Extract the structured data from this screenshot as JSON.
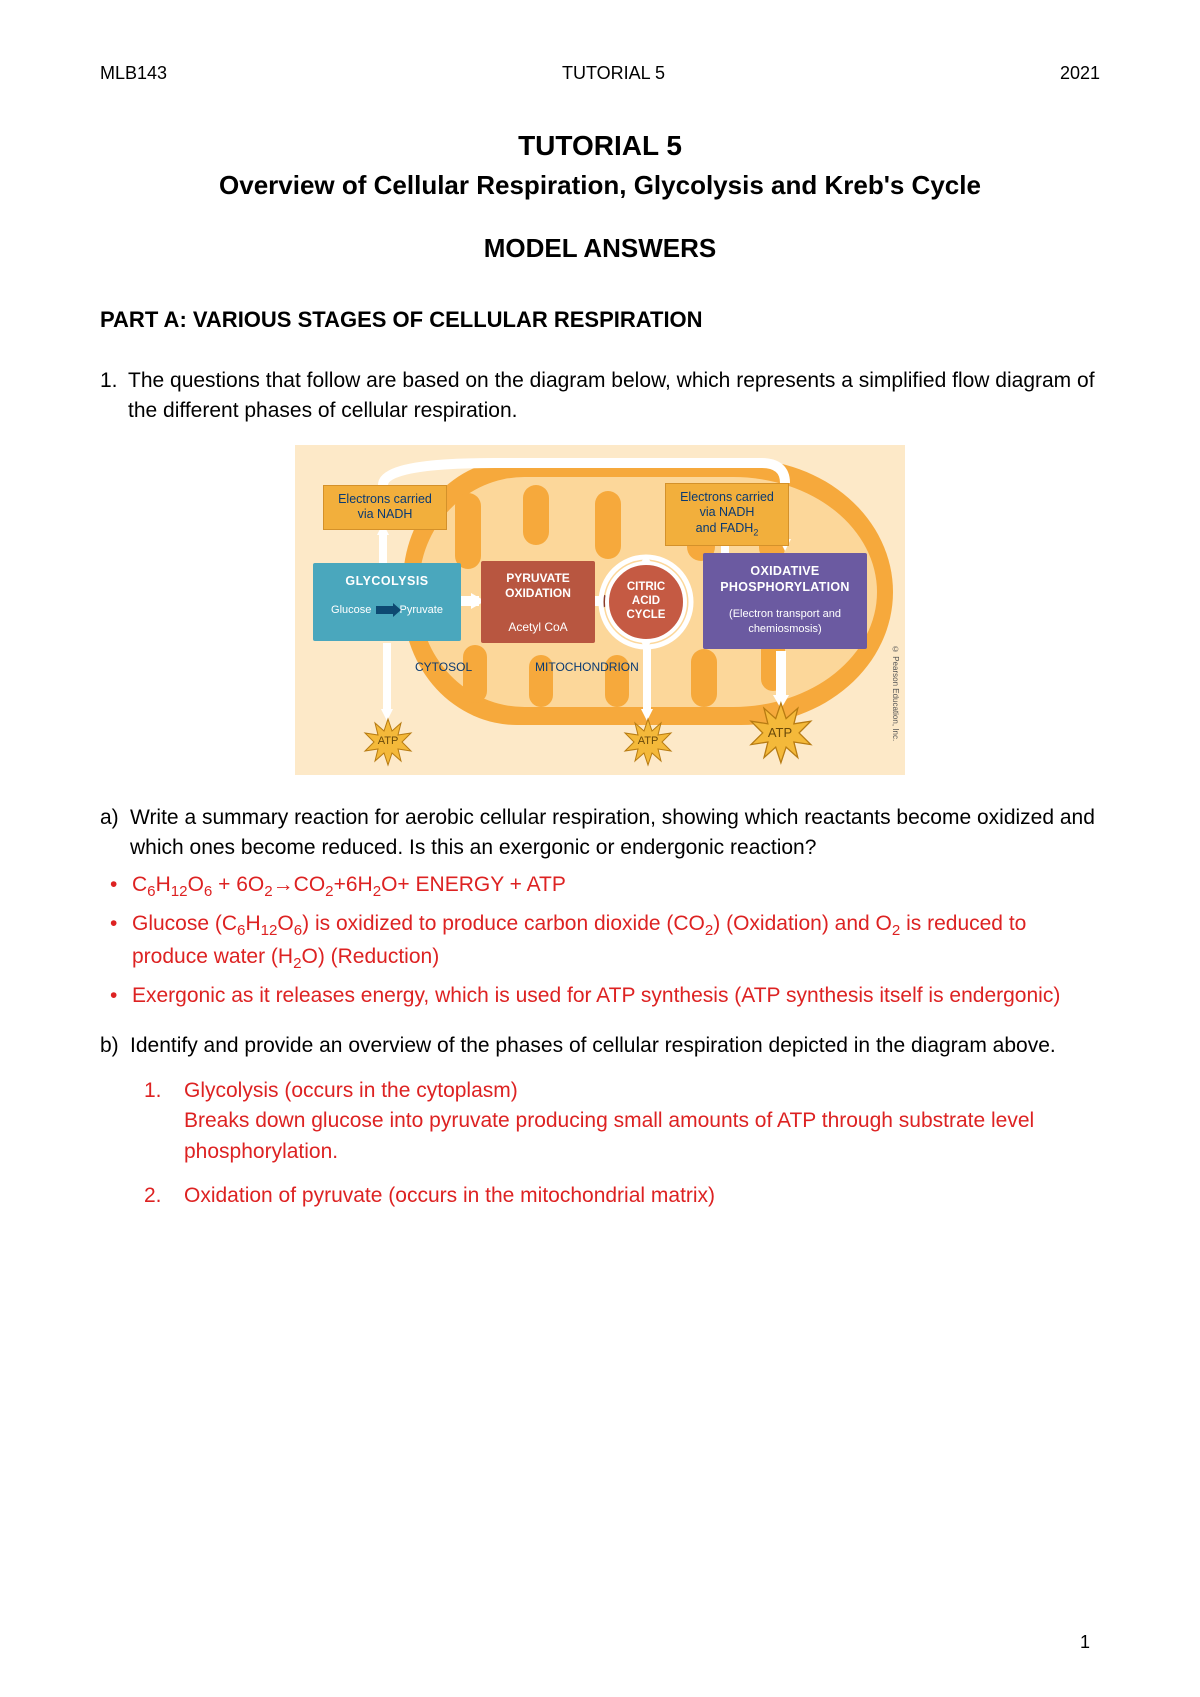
{
  "header": {
    "course": "MLB143",
    "tutorial": "TUTORIAL 5",
    "year": "2021"
  },
  "titles": {
    "main": "TUTORIAL 5",
    "sub": "Overview of Cellular Respiration, Glycolysis and Kreb's Cycle",
    "model": "MODEL ANSWERS",
    "partA": "PART A: VARIOUS STAGES OF CELLULAR RESPIRATION"
  },
  "q1_intro": "The questions that follow are based on the diagram below, which represents a simplified flow diagram of the different phases of cellular respiration.",
  "diagram": {
    "type": "flowchart",
    "background_color": "#fde9c8",
    "mito_outer_color": "#f6a93c",
    "mito_inner_color": "#fcd79a",
    "nadh_left": "Electrons carried via NADH",
    "nadh_right_l1": "Electrons carried",
    "nadh_right_l2": "via NADH",
    "nadh_right_l3": "and FADH",
    "nadh_right_sub": "2",
    "nadh_bg": "#f2af3c",
    "nadh_text": "#093a73",
    "glyco_title": "GLYCOLYSIS",
    "glyco_detail_pre": "Glucose",
    "glyco_detail_post": "Pyruvate",
    "glyco_color": "#4aa7bd",
    "pyox_title": "PYRUVATE OXIDATION",
    "pyox_detail": "Acetyl CoA",
    "pyox_color": "#b85640",
    "cac_l1": "CITRIC",
    "cac_l2": "ACID",
    "cac_l3": "CYCLE",
    "cac_color": "#c55a43",
    "oxphos_title": "OXIDATIVE PHOSPHORYLATION",
    "oxphos_detail": "(Electron transport and chemiosmosis)",
    "oxphos_color": "#6b5aa1",
    "cytosol": "CYTOSOL",
    "mitochondrion": "MITOCHONDRION",
    "atp": "ATP",
    "atp_fill": "#f4b93a",
    "atp_stroke": "#b77b12",
    "copyright": "© Pearson Education, Inc."
  },
  "qa_a": {
    "label": "a)",
    "question": "Write a summary reaction for aerobic cellular respiration, showing which reactants become oxidized and which ones become reduced. Is this an exergonic or endergonic reaction?",
    "answers": [
      {
        "html": "C<sub>6</sub>H<sub>12</sub>O<sub>6</sub> + 6O<sub>2</sub>→CO<sub>2</sub>+6H<sub>2</sub>O+ ENERGY + ATP"
      },
      {
        "html": "Glucose (C<sub>6</sub>H<sub>12</sub>O<sub>6</sub>) is oxidized to produce carbon dioxide (CO<sub>2</sub>) (Oxidation) and O<sub>2</sub> is reduced to produce water (H<sub>2</sub>O) (Reduction)"
      },
      {
        "html": "Exergonic as it releases energy, which is used for ATP synthesis (ATP synthesis itself is endergonic)"
      }
    ]
  },
  "qa_b": {
    "label": "b)",
    "question": "Identify and provide an overview of the phases of cellular respiration depicted in the diagram above.",
    "phases": [
      {
        "num": "1.",
        "html": "Glycolysis (occurs in the cytoplasm)<br>Breaks down glucose into pyruvate producing small amounts of ATP through substrate level phosphorylation."
      },
      {
        "num": "2.",
        "html": "Oxidation of pyruvate (occurs in the mitochondrial matrix)"
      }
    ]
  },
  "page_number": "1"
}
